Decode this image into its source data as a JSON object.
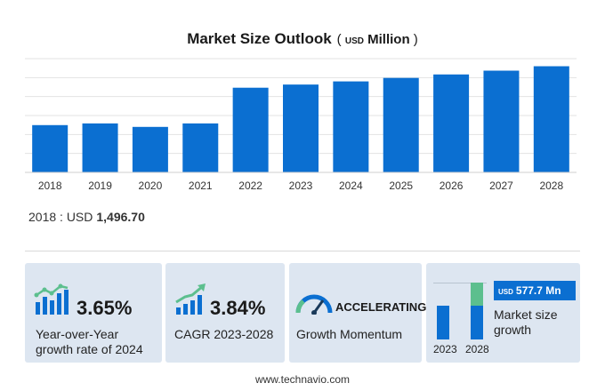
{
  "chart_data": {
    "type": "bar",
    "title": "Market Size Outlook",
    "title_unit_prefix": "USD",
    "title_unit": "Million",
    "categories": [
      "2018",
      "2019",
      "2020",
      "2021",
      "2022",
      "2023",
      "2024",
      "2025",
      "2026",
      "2027",
      "2028"
    ],
    "values": [
      1496.7,
      1550,
      1440,
      1550,
      2680,
      2780,
      2880,
      2990,
      3100,
      3220,
      3360
    ],
    "ylim": [
      0,
      3600
    ],
    "grid": true,
    "bar_color": "#0b6fd1"
  },
  "base_year": {
    "label": "2018 : USD",
    "value": "1,496.70"
  },
  "cards": {
    "yoy": {
      "value": "3.65%",
      "line1": "Year-over-Year",
      "line2": "growth rate of 2024"
    },
    "cagr": {
      "value": "3.84%",
      "line1": "CAGR 2023-2028"
    },
    "momentum": {
      "value": "ACCELERATING",
      "line1": "Growth Momentum"
    },
    "growth": {
      "usd": "USD",
      "value": "577.7 Mn",
      "line1": "Market size",
      "line2": "growth",
      "year_a": "2023",
      "year_b": "2028",
      "bar_color": "#0b6fd1",
      "increment_color": "#5cbf8e"
    }
  },
  "footer": "www.technavio.com"
}
